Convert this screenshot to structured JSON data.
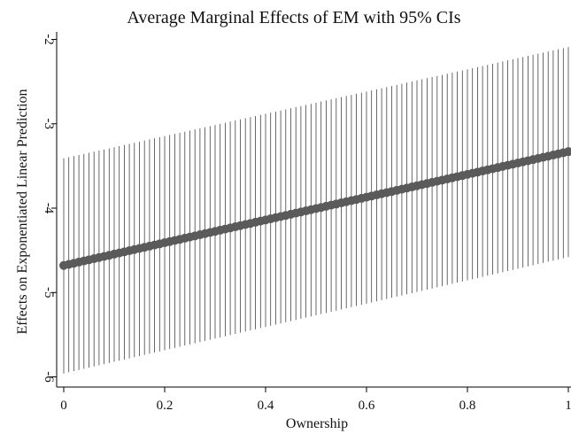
{
  "chart_data": {
    "type": "scatter",
    "title": "Average Marginal Effects of EM with 95% CIs",
    "xlabel": "Ownership",
    "ylabel": "Effects on Exponentiated Linear Prediction",
    "xlim": [
      0,
      1
    ],
    "ylim": [
      -6.1,
      -1.95
    ],
    "xticks": [
      0,
      0.2,
      0.4,
      0.6,
      0.8,
      1
    ],
    "xtick_labels": [
      "0",
      "0.2",
      "0.4",
      "0.6",
      "0.8",
      "1"
    ],
    "yticks": [
      -6,
      -5,
      -4,
      -3,
      -2
    ],
    "ytick_labels": [
      "-6",
      "-5",
      "-4",
      "-3",
      "-2"
    ],
    "grid": false,
    "series": [
      {
        "x_start": 0,
        "x_end": 1,
        "x_step": 0.01,
        "estimate_start": -4.68,
        "estimate_end": -3.33,
        "ci_lower_start": -5.96,
        "ci_lower_end": -4.58,
        "ci_upper_start": -3.41,
        "ci_upper_end": -2.09
      }
    ],
    "colors": {
      "points": "#5a5a5a",
      "ci": "#444444"
    }
  }
}
